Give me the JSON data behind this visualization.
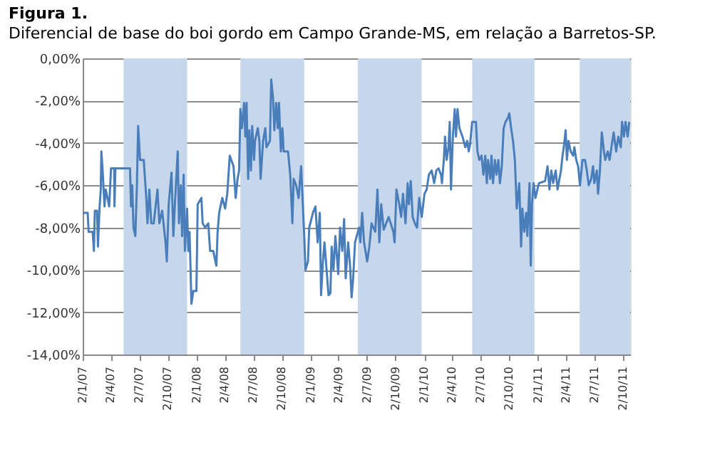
{
  "chart_data": {
    "type": "line",
    "title": "Figura 1.",
    "subtitle": "Diferencial  de base do boi gordo em Campo Grande-MS,  em relação a Barretos-SP.",
    "x": [
      "2007-01-02",
      "2007-01-18",
      "2007-01-21",
      "2007-02-03",
      "2007-02-07",
      "2007-02-10",
      "2007-02-17",
      "2007-02-20",
      "2007-02-25",
      "2007-03-01",
      "2007-03-03",
      "2007-03-07",
      "2007-03-13",
      "2007-03-17",
      "2007-03-28",
      "2007-04-03",
      "2007-04-13",
      "2007-04-14",
      "2007-04-17",
      "2007-06-03",
      "2007-06-06",
      "2007-06-10",
      "2007-06-14",
      "2007-06-20",
      "2007-06-25",
      "2007-06-29",
      "2007-07-05",
      "2007-07-17",
      "2007-07-25",
      "2007-07-29",
      "2007-08-04",
      "2007-08-10",
      "2007-08-18",
      "2007-08-30",
      "2007-09-05",
      "2007-09-14",
      "2007-09-25",
      "2007-09-29",
      "2007-10-05",
      "2007-10-14",
      "2007-10-20",
      "2007-10-26",
      "2007-11-03",
      "2007-11-07",
      "2007-11-13",
      "2007-11-17",
      "2007-11-22",
      "2007-11-26",
      "2007-12-03",
      "2007-12-07",
      "2007-12-11",
      "2007-12-17",
      "2007-12-23",
      "2008-01-02",
      "2008-01-06",
      "2008-01-18",
      "2008-01-22",
      "2008-01-30",
      "2008-02-09",
      "2008-02-15",
      "2008-02-25",
      "2008-03-06",
      "2008-03-10",
      "2008-03-15",
      "2008-03-25",
      "2008-04-03",
      "2008-04-10",
      "2008-04-18",
      "2008-04-30",
      "2008-05-07",
      "2008-05-13",
      "2008-05-18",
      "2008-05-22",
      "2008-05-27",
      "2008-06-03",
      "2008-06-07",
      "2008-06-11",
      "2008-06-16",
      "2008-06-20",
      "2008-06-25",
      "2008-06-29",
      "2008-07-05",
      "2008-07-08",
      "2008-07-17",
      "2008-07-22",
      "2008-07-26",
      "2008-08-03",
      "2008-08-10",
      "2008-08-14",
      "2008-08-25",
      "2008-08-29",
      "2008-09-04",
      "2008-09-08",
      "2008-09-14",
      "2008-09-19",
      "2008-09-23",
      "2008-09-29",
      "2008-10-04",
      "2008-10-08",
      "2008-10-22",
      "2008-10-29",
      "2008-11-05",
      "2008-11-09",
      "2008-11-17",
      "2008-11-25",
      "2008-12-03",
      "2008-12-13",
      "2008-12-17",
      "2008-12-25",
      "2008-12-29",
      "2009-01-10",
      "2009-01-18",
      "2009-01-25",
      "2009-02-01",
      "2009-02-05",
      "2009-02-11",
      "2009-02-16",
      "2009-03-01",
      "2009-03-07",
      "2009-03-11",
      "2009-03-17",
      "2009-03-23",
      "2009-04-01",
      "2009-04-07",
      "2009-04-14",
      "2009-04-20",
      "2009-04-25",
      "2009-05-03",
      "2009-05-09",
      "2009-05-14",
      "2009-05-19",
      "2009-05-25",
      "2009-06-07",
      "2009-06-11",
      "2009-06-17",
      "2009-06-23",
      "2009-07-03",
      "2009-07-10",
      "2009-07-17",
      "2009-07-29",
      "2009-08-05",
      "2009-08-11",
      "2009-08-17",
      "2009-08-25",
      "2009-09-10",
      "2009-09-25",
      "2009-09-29",
      "2009-10-05",
      "2009-10-14",
      "2009-10-20",
      "2009-10-26",
      "2009-11-03",
      "2009-11-10",
      "2009-11-14",
      "2009-11-20",
      "2009-11-26",
      "2009-12-03",
      "2009-12-10",
      "2009-12-17",
      "2009-12-25",
      "2010-01-03",
      "2010-01-10",
      "2010-01-17",
      "2010-01-26",
      "2010-02-03",
      "2010-02-10",
      "2010-02-17",
      "2010-02-25",
      "2010-02-28",
      "2010-03-06",
      "2010-03-10",
      "2010-03-15",
      "2010-03-21",
      "2010-03-25",
      "2010-03-29",
      "2010-04-04",
      "2010-04-10",
      "2010-04-14",
      "2010-04-19",
      "2010-04-25",
      "2010-05-05",
      "2010-05-14",
      "2010-05-20",
      "2010-05-25",
      "2010-05-29",
      "2010-06-05",
      "2010-06-17",
      "2010-06-22",
      "2010-06-28",
      "2010-07-05",
      "2010-07-11",
      "2010-07-17",
      "2010-07-22",
      "2010-07-26",
      "2010-08-02",
      "2010-08-06",
      "2010-08-11",
      "2010-08-17",
      "2010-08-22",
      "2010-08-28",
      "2010-09-02",
      "2010-09-08",
      "2010-09-14",
      "2010-09-20",
      "2010-09-28",
      "2010-10-02",
      "2010-10-08",
      "2010-10-14",
      "2010-10-20",
      "2010-10-26",
      "2010-11-03",
      "2010-11-09",
      "2010-11-13",
      "2010-11-19",
      "2010-11-25",
      "2010-11-29",
      "2010-12-06",
      "2010-12-10",
      "2010-12-14",
      "2010-12-19",
      "2010-12-25",
      "2011-01-05",
      "2011-01-25",
      "2011-02-02",
      "2011-02-08",
      "2011-02-14",
      "2011-02-20",
      "2011-02-25",
      "2011-02-28",
      "2011-03-06",
      "2011-03-12",
      "2011-03-17",
      "2011-03-22",
      "2011-03-26",
      "2011-04-01",
      "2011-04-05",
      "2011-04-10",
      "2011-04-17",
      "2011-04-25",
      "2011-04-29",
      "2011-05-05",
      "2011-05-11",
      "2011-05-17",
      "2011-05-25",
      "2011-06-02",
      "2011-06-08",
      "2011-06-14",
      "2011-06-22",
      "2011-06-28",
      "2011-07-02",
      "2011-07-10",
      "2011-07-14",
      "2011-07-20",
      "2011-07-26",
      "2011-08-02",
      "2011-08-06",
      "2011-08-14",
      "2011-08-20",
      "2011-08-26",
      "2011-09-02",
      "2011-09-10",
      "2011-09-17",
      "2011-09-25",
      "2011-09-29",
      "2011-10-05",
      "2011-10-10",
      "2011-10-17",
      "2011-10-22"
    ],
    "series": [
      {
        "color": "#4a7ebb",
        "values": [
          -7.3,
          -7.3,
          -8.2,
          -8.2,
          -9.1,
          -7.2,
          -7.2,
          -8.9,
          -7.1,
          -6.2,
          -4.4,
          -5.3,
          -7.0,
          -6.2,
          -7.0,
          -5.2,
          -5.2,
          -7.0,
          -5.2,
          -5.2,
          -7.0,
          -6.0,
          -8.0,
          -8.4,
          -6.0,
          -3.2,
          -4.8,
          -4.8,
          -6.6,
          -7.8,
          -6.2,
          -7.8,
          -7.8,
          -6.2,
          -7.8,
          -7.2,
          -8.7,
          -9.6,
          -6.9,
          -5.4,
          -8.4,
          -6.6,
          -4.4,
          -7.8,
          -6.0,
          -8.4,
          -5.5,
          -9.1,
          -7.1,
          -9.1,
          -8.2,
          -11.6,
          -11.0,
          -11.0,
          -6.9,
          -6.6,
          -7.8,
          -8.0,
          -7.8,
          -9.1,
          -9.1,
          -9.8,
          -8.2,
          -7.3,
          -6.6,
          -7.1,
          -6.4,
          -4.6,
          -5.1,
          -6.6,
          -5.7,
          -5.3,
          -2.4,
          -3.3,
          -2.1,
          -3.7,
          -2.1,
          -5.7,
          -3.4,
          -5.3,
          -3.2,
          -4.8,
          -3.9,
          -3.3,
          -3.9,
          -5.7,
          -3.9,
          -3.3,
          -4.2,
          -3.9,
          -1.0,
          -1.9,
          -3.4,
          -2.1,
          -3.3,
          -2.1,
          -4.4,
          -3.3,
          -4.4,
          -4.4,
          -5.5,
          -7.8,
          -5.7,
          -6.0,
          -6.6,
          -5.1,
          -8.4,
          -10.0,
          -9.6,
          -8.0,
          -7.3,
          -7.0,
          -8.7,
          -7.3,
          -11.2,
          -9.6,
          -8.7,
          -11.2,
          -11.1,
          -8.9,
          -10.0,
          -8.4,
          -10.2,
          -8.0,
          -9.1,
          -7.6,
          -10.4,
          -8.7,
          -9.8,
          -11.3,
          -10.4,
          -8.7,
          -8.0,
          -8.7,
          -7.3,
          -8.7,
          -9.6,
          -8.9,
          -7.8,
          -8.2,
          -6.2,
          -8.7,
          -6.9,
          -8.1,
          -7.5,
          -8.2,
          -8.7,
          -6.2,
          -6.9,
          -7.5,
          -6.4,
          -7.8,
          -5.9,
          -6.9,
          -5.8,
          -7.5,
          -7.8,
          -8.0,
          -6.6,
          -7.5,
          -6.4,
          -6.2,
          -5.5,
          -5.3,
          -5.9,
          -5.3,
          -5.2,
          -5.5,
          -5.9,
          -4.8,
          -3.7,
          -4.8,
          -4.2,
          -3.0,
          -6.2,
          -3.7,
          -2.4,
          -3.7,
          -2.4,
          -3.3,
          -3.7,
          -4.2,
          -3.9,
          -4.4,
          -4.1,
          -3.0,
          -3.0,
          -4.4,
          -4.8,
          -4.6,
          -5.5,
          -4.6,
          -5.9,
          -4.8,
          -5.7,
          -4.6,
          -5.9,
          -4.8,
          -5.5,
          -4.8,
          -5.9,
          -5.1,
          -3.3,
          -3.0,
          -2.8,
          -2.6,
          -3.3,
          -3.9,
          -4.8,
          -7.1,
          -5.9,
          -8.9,
          -7.1,
          -8.2,
          -7.3,
          -8.4,
          -5.9,
          -9.8,
          -6.9,
          -5.9,
          -6.6,
          -5.9,
          -5.8,
          -5.1,
          -6.2,
          -5.3,
          -5.9,
          -5.5,
          -5.3,
          -6.2,
          -5.7,
          -5.3,
          -4.6,
          -4.2,
          -3.4,
          -4.8,
          -3.9,
          -4.4,
          -4.6,
          -4.2,
          -4.8,
          -5.1,
          -6.0,
          -4.8,
          -4.8,
          -5.3,
          -6.0,
          -5.7,
          -5.1,
          -5.9,
          -5.3,
          -6.4,
          -5.3,
          -3.5,
          -4.4,
          -4.8,
          -4.4,
          -4.8,
          -4.2,
          -3.5,
          -4.4,
          -3.7,
          -4.2,
          -3.0,
          -3.7,
          -3.0,
          -3.7,
          -3.0
        ]
      }
    ],
    "xlim": [
      "2007-01-02",
      "2011-10-25"
    ],
    "xticks": [
      {
        "value": "2007-01-02",
        "label": "2/1/07"
      },
      {
        "value": "2007-04-02",
        "label": "2/4/07"
      },
      {
        "value": "2007-07-02",
        "label": "2/7/07"
      },
      {
        "value": "2007-10-02",
        "label": "2/10/07"
      },
      {
        "value": "2008-01-02",
        "label": "2/1/08"
      },
      {
        "value": "2008-04-02",
        "label": "2/4/08"
      },
      {
        "value": "2008-07-02",
        "label": "2/7/08"
      },
      {
        "value": "2008-10-02",
        "label": "2/10/08"
      },
      {
        "value": "2009-01-02",
        "label": "2/1/09"
      },
      {
        "value": "2009-04-02",
        "label": "2/4/09"
      },
      {
        "value": "2009-07-02",
        "label": "2/7/09"
      },
      {
        "value": "2009-10-02",
        "label": "2/10/09"
      },
      {
        "value": "2010-01-02",
        "label": "2/1/10"
      },
      {
        "value": "2010-04-02",
        "label": "2/4/10"
      },
      {
        "value": "2010-07-02",
        "label": "2/7/10"
      },
      {
        "value": "2010-10-02",
        "label": "2/10/10"
      },
      {
        "value": "2011-01-02",
        "label": "2/1/11"
      },
      {
        "value": "2011-04-02",
        "label": "2/4/11"
      },
      {
        "value": "2011-07-02",
        "label": "2/7/11"
      },
      {
        "value": "2011-10-02",
        "label": "2/10/11"
      }
    ],
    "ylim": [
      -14,
      0
    ],
    "yticks": [
      {
        "value": -14,
        "label": "-14,00%"
      },
      {
        "value": -12,
        "label": "-12,00%"
      },
      {
        "value": -10,
        "label": "-10,00%"
      },
      {
        "value": -8,
        "label": "-8,00%"
      },
      {
        "value": -6,
        "label": "-6,00%"
      },
      {
        "value": -4,
        "label": "-4,00%"
      },
      {
        "value": -2,
        "label": "-2,00%"
      },
      {
        "value": 0,
        "label": "0,00%"
      }
    ],
    "bands": [
      {
        "axis": "x",
        "from": "2007-05-13",
        "to": "2007-12-03",
        "color": "#c6d7ec"
      },
      {
        "axis": "x",
        "from": "2008-05-22",
        "to": "2008-12-13",
        "color": "#c6d7ec"
      },
      {
        "axis": "x",
        "from": "2009-06-03",
        "to": "2009-12-25",
        "color": "#c6d7ec"
      },
      {
        "axis": "x",
        "from": "2010-06-05",
        "to": "2010-12-22",
        "color": "#c6d7ec"
      },
      {
        "axis": "x",
        "from": "2011-05-16",
        "to": "2011-10-25",
        "color": "#c6d7ec"
      }
    ],
    "grid": "y",
    "marker": "none",
    "line_style": "solid"
  }
}
